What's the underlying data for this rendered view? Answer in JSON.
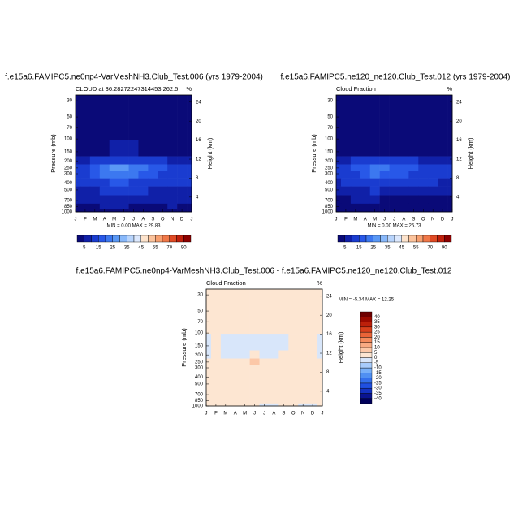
{
  "chart_data": [
    {
      "type": "contour",
      "orientation": "horizontal",
      "title": "f.e15a6.FAMIPC5.ne0np4-VarMeshNH3.Club_Test.006 (yrs 1979-2004)",
      "subtitle": "CLOUD at 36.28272247314453,262.5",
      "units": "%",
      "y_label": "Pressure (mb)",
      "y2_label": "Height (km)",
      "categories": [
        "J",
        "F",
        "M",
        "A",
        "M",
        "J",
        "J",
        "A",
        "S",
        "O",
        "N",
        "D",
        "J"
      ],
      "y": [
        30,
        70,
        150,
        200,
        250,
        300,
        400,
        500,
        700,
        850,
        1000
      ],
      "z": [
        [
          2,
          2,
          2,
          2,
          2,
          2,
          2,
          2,
          2,
          2,
          2,
          2,
          2
        ],
        [
          2,
          2,
          2,
          2,
          2,
          2,
          2,
          2,
          2,
          2,
          2,
          2,
          2
        ],
        [
          3,
          3,
          3,
          4,
          5,
          5,
          5,
          4,
          4,
          3,
          3,
          3,
          3
        ],
        [
          8,
          9,
          10,
          12,
          14,
          14,
          13,
          12,
          11,
          10,
          9,
          8,
          8
        ],
        [
          12,
          14,
          17,
          22,
          28,
          27,
          24,
          20,
          17,
          15,
          13,
          12,
          12
        ],
        [
          11,
          13,
          16,
          20,
          24,
          23,
          21,
          18,
          16,
          14,
          12,
          11,
          11
        ],
        [
          10,
          11,
          12,
          14,
          15,
          15,
          14,
          13,
          12,
          12,
          11,
          10,
          10
        ],
        [
          8,
          9,
          9,
          10,
          11,
          11,
          10,
          10,
          9,
          9,
          9,
          8,
          8
        ],
        [
          7,
          7,
          7,
          8,
          8,
          7,
          6,
          6,
          6,
          7,
          7,
          7,
          7
        ],
        [
          4,
          4,
          4,
          6,
          6,
          5,
          4,
          4,
          4,
          4,
          5,
          4,
          4
        ],
        [
          3,
          3,
          3,
          3,
          3,
          3,
          3,
          3,
          3,
          3,
          3,
          3,
          3
        ]
      ],
      "ylim": [
        1000,
        25
      ],
      "log_y": true,
      "yticks": [
        30,
        50,
        70,
        100,
        150,
        200,
        250,
        300,
        400,
        500,
        700,
        850,
        1000
      ],
      "y2lim": [
        0.9,
        25.5
      ],
      "y2ticks": [
        4,
        8,
        12,
        16,
        20,
        24
      ],
      "min_max": "MIN =  0.00 MAX =  29.83",
      "colorbar": {
        "levels": [
          5,
          10,
          15,
          20,
          25,
          30,
          35,
          40,
          45,
          50,
          55,
          60,
          70,
          80,
          90
        ],
        "colors": [
          "#0a0a78",
          "#1020a8",
          "#1a3cd0",
          "#2858e8",
          "#3c78f0",
          "#5a98f5",
          "#88b8fa",
          "#b8d4fc",
          "#dce8fd",
          "#fde3cc",
          "#fcc39c",
          "#f8a070",
          "#f07848",
          "#e04a24",
          "#c0200c",
          "#8c0000"
        ],
        "ticks": [
          5,
          15,
          25,
          35,
          45,
          55,
          70,
          90
        ]
      }
    },
    {
      "type": "contour",
      "orientation": "horizontal",
      "title": "f.e15a6.FAMIPC5.ne120_ne120.Club_Test.012 (yrs 1979-2004)",
      "subtitle": "Cloud Fraction",
      "units": "%",
      "y_label": "Pressure (mb)",
      "y2_label": "Height (km)",
      "categories": [
        "J",
        "F",
        "M",
        "A",
        "M",
        "J",
        "J",
        "A",
        "S",
        "O",
        "N",
        "D",
        "J"
      ],
      "y": [
        30,
        70,
        150,
        200,
        250,
        300,
        400,
        500,
        700,
        850,
        1000
      ],
      "z": [
        [
          2,
          2,
          2,
          2,
          2,
          2,
          2,
          2,
          2,
          2,
          2,
          2,
          2
        ],
        [
          2,
          2,
          2,
          2,
          2,
          2,
          2,
          2,
          2,
          2,
          2,
          2,
          2
        ],
        [
          3,
          3,
          3,
          4,
          4,
          4,
          4,
          4,
          3,
          3,
          3,
          3,
          3
        ],
        [
          8,
          9,
          10,
          11,
          13,
          12,
          12,
          11,
          10,
          9,
          8,
          8,
          8
        ],
        [
          11,
          13,
          15,
          19,
          24,
          20,
          18,
          16,
          15,
          13,
          12,
          11,
          11
        ],
        [
          10,
          12,
          14,
          17,
          20,
          18,
          17,
          15,
          14,
          13,
          11,
          10,
          10
        ],
        [
          9,
          10,
          11,
          12,
          13,
          12,
          12,
          11,
          11,
          10,
          10,
          9,
          9
        ],
        [
          6,
          7,
          8,
          9,
          10,
          9,
          8,
          8,
          8,
          8,
          7,
          6,
          6
        ],
        [
          4,
          4,
          5,
          6,
          6,
          4,
          4,
          4,
          4,
          4,
          4,
          4,
          4
        ],
        [
          3,
          3,
          3,
          4,
          4,
          3,
          3,
          3,
          3,
          3,
          3,
          3,
          3
        ],
        [
          2,
          2,
          2,
          2,
          2,
          2,
          2,
          2,
          2,
          2,
          2,
          2,
          2
        ]
      ],
      "ylim": [
        1000,
        25
      ],
      "log_y": true,
      "yticks": [
        30,
        50,
        70,
        100,
        150,
        200,
        250,
        300,
        400,
        500,
        700,
        850,
        1000
      ],
      "y2lim": [
        0.9,
        25.5
      ],
      "y2ticks": [
        4,
        8,
        12,
        16,
        20,
        24
      ],
      "min_max": "MIN =  0.00 MAX =  25.73",
      "colorbar": {
        "levels": [
          5,
          10,
          15,
          20,
          25,
          30,
          35,
          40,
          45,
          50,
          55,
          60,
          70,
          80,
          90
        ],
        "colors": [
          "#0a0a78",
          "#1020a8",
          "#1a3cd0",
          "#2858e8",
          "#3c78f0",
          "#5a98f5",
          "#88b8fa",
          "#b8d4fc",
          "#dce8fd",
          "#fde3cc",
          "#fcc39c",
          "#f8a070",
          "#f07848",
          "#e04a24",
          "#c0200c",
          "#8c0000"
        ],
        "ticks": [
          5,
          15,
          25,
          35,
          45,
          55,
          70,
          90
        ]
      }
    },
    {
      "type": "contour",
      "orientation": "vertical",
      "title": "f.e15a6.FAMIPC5.ne0np4-VarMeshNH3.Club_Test.006 - f.e15a6.FAMIPC5.ne120_ne120.Club_Test.012",
      "subtitle": "Cloud Fraction",
      "units": "%",
      "y_label": "Pressure (mb)",
      "y2_label": "Height (km)",
      "categories": [
        "J",
        "F",
        "M",
        "A",
        "M",
        "J",
        "J",
        "A",
        "S",
        "O",
        "N",
        "D",
        "J"
      ],
      "y": [
        30,
        70,
        150,
        200,
        250,
        300,
        400,
        500,
        700,
        850,
        1000
      ],
      "z": [
        [
          1,
          1,
          1,
          1,
          1,
          1,
          1,
          1,
          1,
          1,
          1,
          1,
          1
        ],
        [
          1,
          1,
          1,
          1,
          1,
          1,
          1,
          1,
          1,
          1,
          1,
          1,
          1
        ],
        [
          -1,
          1,
          -1,
          -1,
          -1,
          -1,
          -1,
          -1,
          -1,
          1,
          1,
          1,
          -1
        ],
        [
          -1,
          1,
          -1,
          -1,
          -1,
          2,
          -1,
          -1,
          1,
          1,
          1,
          1,
          -1
        ],
        [
          1,
          1,
          1,
          1,
          1,
          6,
          1,
          1,
          1,
          1,
          1,
          1,
          1
        ],
        [
          1,
          1,
          1,
          1,
          1,
          1,
          1,
          1,
          1,
          1,
          1,
          1,
          1
        ],
        [
          1,
          1,
          1,
          1,
          1,
          1,
          1,
          1,
          1,
          1,
          1,
          1,
          1
        ],
        [
          1,
          1,
          1,
          1,
          1,
          1,
          1,
          1,
          1,
          1,
          1,
          1,
          1
        ],
        [
          1,
          1,
          1,
          1,
          1,
          1,
          1,
          1,
          1,
          1,
          1,
          1,
          1
        ],
        [
          1,
          1,
          1,
          1,
          1,
          1,
          1,
          1,
          1,
          1,
          1,
          1,
          1
        ],
        [
          1,
          1,
          1,
          1,
          1,
          1,
          -1,
          -1,
          1,
          1,
          -1,
          -1,
          1
        ]
      ],
      "ylim": [
        1000,
        25
      ],
      "log_y": true,
      "yticks": [
        30,
        50,
        70,
        100,
        150,
        200,
        250,
        300,
        400,
        500,
        700,
        850,
        1000
      ],
      "y2lim": [
        0.9,
        25.5
      ],
      "y2ticks": [
        4,
        8,
        12,
        16,
        20,
        24
      ],
      "min_max": "MIN = -5.34 MAX =  12.25",
      "colorbar": {
        "levels": [
          -40,
          -35,
          -30,
          -25,
          -20,
          -15,
          -10,
          -5,
          0,
          5,
          10,
          15,
          20,
          25,
          30,
          35,
          40
        ],
        "colors": [
          "#00005a",
          "#0a1490",
          "#1432c0",
          "#2050e0",
          "#3470ec",
          "#5090f2",
          "#78b0f8",
          "#a8ccfb",
          "#d8e6fa",
          "#fde6d2",
          "#fcc8a8",
          "#f9aa82",
          "#f48a5c",
          "#ea6438",
          "#d8401c",
          "#bc200a",
          "#9a0a00",
          "#6e0000"
        ],
        "ticks": [
          -40,
          -35,
          -30,
          -25,
          -20,
          -15,
          -10,
          -5,
          0,
          5,
          10,
          15,
          20,
          25,
          30,
          35,
          40
        ]
      }
    }
  ]
}
